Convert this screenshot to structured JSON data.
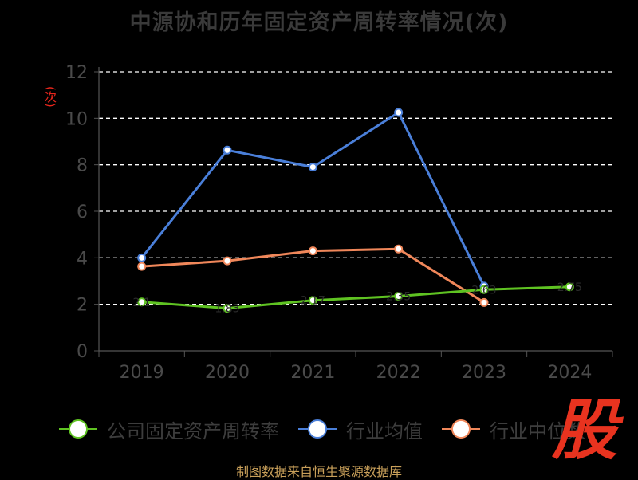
{
  "title": "中源协和历年固定资产周转率情况(次)",
  "source": "制图数据来自恒生聚源数据库",
  "logo_text": "股",
  "colors": {
    "background": "#000000",
    "grid": "#ffffff",
    "axis": "#555555",
    "tick_text": "#4a4a4a",
    "ylabel": "#e8261c"
  },
  "chart_data": {
    "type": "line",
    "title": "中源协和历年固定资产周转率情况(次)",
    "ylabel": "(次)",
    "xlabel": "",
    "categories": [
      "2019",
      "2020",
      "2021",
      "2022",
      "2023",
      "2024"
    ],
    "ylim": [
      0,
      12
    ],
    "yticks": [
      0,
      2,
      4,
      6,
      8,
      10,
      12
    ],
    "grid": true,
    "legend_position": "bottom",
    "series": [
      {
        "name": "公司固定资产周转率",
        "color": "#5fc322",
        "values": [
          2.1,
          1.83,
          2.17,
          2.35,
          2.63,
          2.75
        ],
        "data_labels": [
          "2.1",
          "1.83",
          "2.17",
          "2.35",
          "2.63",
          "2.75"
        ]
      },
      {
        "name": "行业均值",
        "color": "#4a7fd9",
        "values": [
          4.0,
          8.63,
          7.9,
          10.25,
          2.78,
          null
        ]
      },
      {
        "name": "行业中位数",
        "color": "#f0875a",
        "values": [
          3.63,
          3.87,
          4.3,
          4.38,
          2.08,
          null
        ]
      }
    ]
  }
}
